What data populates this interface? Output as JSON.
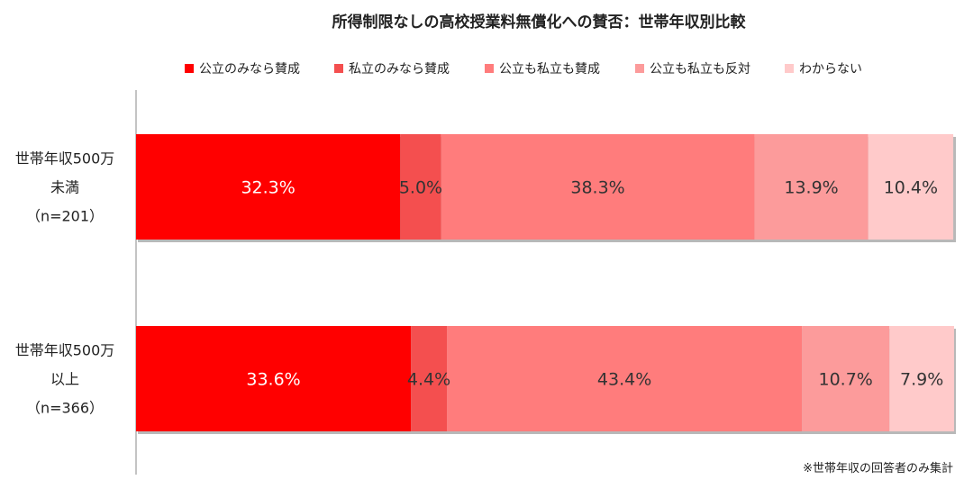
{
  "chart_data": {
    "type": "bar",
    "orientation": "horizontal",
    "stacked": true,
    "title": "所得制限なしの高校授業料無償化への賛否：世帯年収別比較",
    "categories": [
      {
        "lines": [
          "世帯年収500万",
          "未満",
          "（n=201）"
        ]
      },
      {
        "lines": [
          "世帯年収500万",
          "以上",
          "（n=366）"
        ]
      }
    ],
    "series": [
      {
        "name": "公立のみなら賛成",
        "color": "#ff0000",
        "label_color": "#ffffff",
        "values": [
          32.3,
          33.6
        ],
        "labels": [
          "32.3%",
          "33.6%"
        ]
      },
      {
        "name": "私立のみなら賛成",
        "color": "#f44f4f",
        "label_color": "#333333",
        "values": [
          5.0,
          4.4
        ],
        "labels": [
          "5.0%",
          "4.4%"
        ]
      },
      {
        "name": "公立も私立も賛成",
        "color": "#ff7c7c",
        "label_color": "#333333",
        "values": [
          38.3,
          43.4
        ],
        "labels": [
          "38.3%",
          "43.4%"
        ]
      },
      {
        "name": "公立も私立も反対",
        "color": "#fc9b9b",
        "label_color": "#333333",
        "values": [
          13.9,
          10.7
        ],
        "labels": [
          "13.9%",
          "10.7%"
        ]
      },
      {
        "name": "わからない",
        "color": "#ffcaca",
        "label_color": "#333333",
        "values": [
          10.4,
          7.9
        ],
        "labels": [
          "10.4%",
          "7.9%"
        ]
      }
    ],
    "xlim": [
      0,
      100
    ],
    "grid": false,
    "legend_position": "top"
  },
  "footnote": "※世帯年収の回答者のみ集計"
}
